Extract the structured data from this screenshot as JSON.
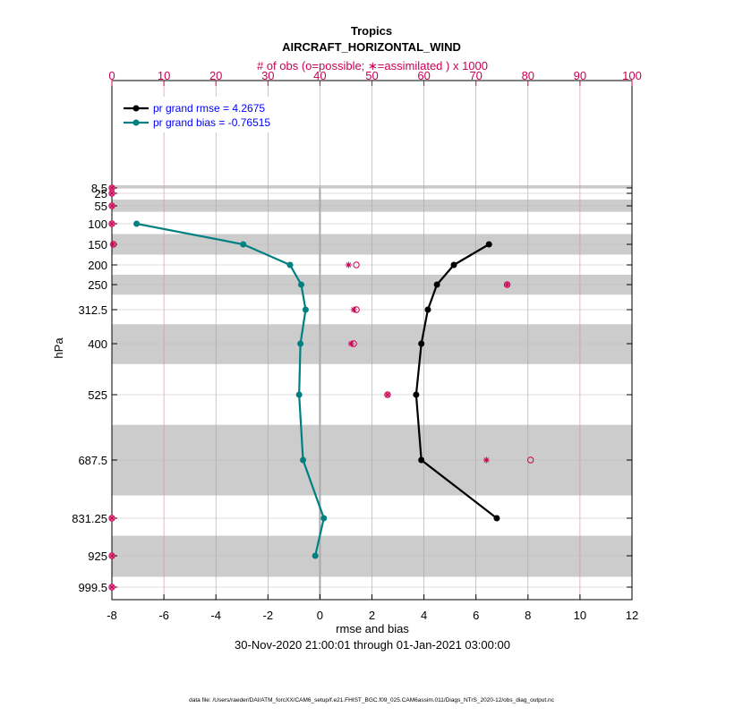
{
  "chart_data": {
    "type": "line",
    "title": "Tropics",
    "subtitle": "AIRCRAFT_HORIZONTAL_WIND",
    "top_axis_label": "# of obs (o=possible; ∗=assimilated ) x 1000",
    "xlabel": "rmse and bias",
    "ylabel": "hPa",
    "date_range": "30-Nov-2020 21:00:01 through 01-Jan-2021 03:00:00",
    "footer": "data file: /Users/raeder/DAI/ATM_forcXX/CAM6_setup/f.e21.FHIST_BGC.f09_025.CAM6assim.011/Diags_NTrS_2020-12/obs_diag_output.nc",
    "xlim": [
      -8,
      12
    ],
    "x_ticks": [
      "-8",
      "-6",
      "-4",
      "-2",
      "0",
      "2",
      "4",
      "6",
      "8",
      "10",
      "12"
    ],
    "top_xlim": [
      0,
      100
    ],
    "top_ticks": [
      "0",
      "10",
      "20",
      "30",
      "40",
      "50",
      "60",
      "70",
      "80",
      "90",
      "100"
    ],
    "y_levels": [
      8.5,
      25,
      55,
      100,
      150,
      200,
      250,
      312.5,
      400,
      525,
      687.5,
      831.25,
      925,
      999.5
    ],
    "y_labels": [
      "8.5",
      "25",
      "55",
      "100",
      "150",
      "200",
      "250",
      "312.5",
      "400",
      "525",
      "687.5",
      "831.25",
      "925",
      "999.5"
    ],
    "layer_bands_hPa": [
      [
        5,
        10
      ],
      [
        40,
        70
      ],
      [
        125,
        175
      ],
      [
        225,
        275
      ],
      [
        350,
        450
      ],
      [
        600,
        775
      ],
      [
        875,
        975
      ]
    ],
    "legend": {
      "position": "top-left",
      "rmse_text": "pr grand rmse = 4.2675",
      "bias_text": "pr grand bias = -0.76515"
    },
    "colors": {
      "rmse": "#000000",
      "bias": "#008080",
      "obs": "#cc0055",
      "band": "#cccccc",
      "text_blue": "#0000ff"
    },
    "series": [
      {
        "name": "rmse",
        "levels": [
          150,
          200,
          250,
          312.5,
          400,
          525,
          687.5,
          831.25
        ],
        "values": [
          6.5,
          5.15,
          4.5,
          4.15,
          3.9,
          3.7,
          3.9,
          6.8
        ]
      },
      {
        "name": "bias",
        "levels": [
          100,
          150,
          200,
          250,
          312.5,
          400,
          525,
          687.5,
          831.25,
          925
        ],
        "values": [
          -7.05,
          -2.95,
          -1.15,
          -0.72,
          -0.55,
          -0.75,
          -0.8,
          -0.65,
          0.15,
          -0.18
        ]
      }
    ],
    "obs_possible": {
      "levels": [
        8.5,
        25,
        55,
        100,
        150,
        200,
        250,
        312.5,
        400,
        525,
        687.5,
        831.25,
        925,
        999.5
      ],
      "values": [
        0,
        0,
        0,
        0,
        0.3,
        47,
        76,
        47,
        46.5,
        53,
        80.5,
        0,
        0,
        0
      ]
    },
    "obs_assimilated": {
      "levels": [
        8.5,
        25,
        55,
        100,
        150,
        200,
        250,
        312.5,
        400,
        525,
        687.5,
        831.25,
        925,
        999.5
      ],
      "values": [
        0,
        0,
        0,
        0,
        0.2,
        45.5,
        76,
        46.5,
        46,
        53,
        72,
        0,
        0,
        0
      ]
    }
  }
}
